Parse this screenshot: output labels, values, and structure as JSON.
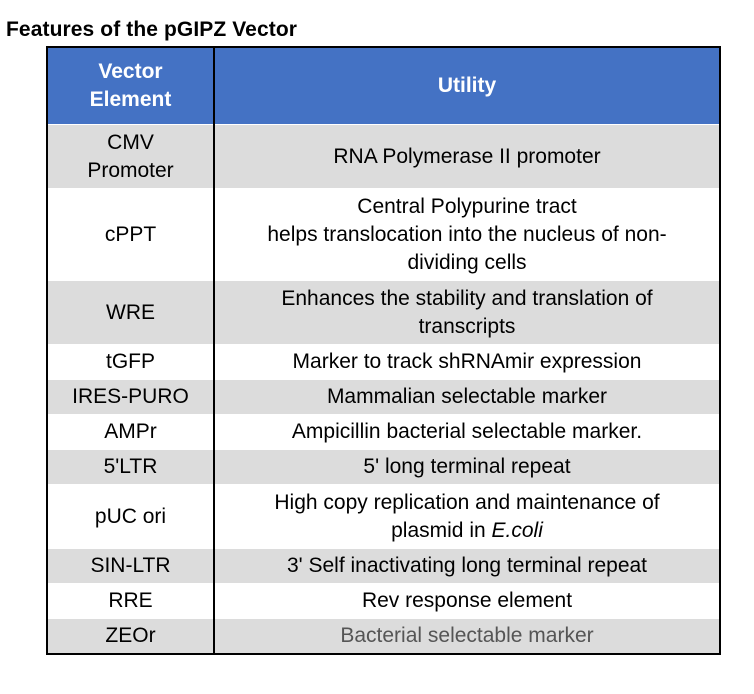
{
  "title": "Features of the pGIPZ Vector",
  "header": {
    "col1": "Vector Element",
    "col1_line1": "Vector",
    "col1_line2": "Element",
    "col2": "Utility"
  },
  "rows": [
    {
      "element_lines": [
        "CMV",
        "Promoter"
      ],
      "utility_lines": [
        "RNA Polymerase II promoter"
      ]
    },
    {
      "element_lines": [
        "cPPT"
      ],
      "utility_lines": [
        "Central Polypurine tract",
        "helps translocation into the nucleus of non-",
        "dividing cells"
      ]
    },
    {
      "element_lines": [
        "WRE"
      ],
      "utility_lines": [
        "Enhances the stability and translation of",
        "transcripts"
      ]
    },
    {
      "element_lines": [
        "tGFP"
      ],
      "utility_lines": [
        "Marker to track shRNAmir expression"
      ]
    },
    {
      "element_lines": [
        "IRES-PURO"
      ],
      "utility_lines": [
        "Mammalian selectable marker"
      ]
    },
    {
      "element_lines": [
        "AMPr"
      ],
      "utility_lines": [
        "Ampicillin bacterial selectable marker."
      ]
    },
    {
      "element_lines": [
        "5'LTR"
      ],
      "utility_lines": [
        "5' long terminal repeat"
      ]
    },
    {
      "element_lines": [
        "pUC ori"
      ],
      "utility_lines": [
        "High copy replication and maintenance of"
      ],
      "utility_line2_prefix": "plasmid in ",
      "utility_line2_italic": "E.coli"
    },
    {
      "element_lines": [
        "SIN-LTR"
      ],
      "utility_lines": [
        "3' Self inactivating long terminal repeat"
      ]
    },
    {
      "element_lines": [
        "RRE"
      ],
      "utility_lines": [
        "Rev response element"
      ]
    },
    {
      "element_lines": [
        "ZEOr"
      ],
      "utility_lines": [
        "Bacterial selectable marker"
      ]
    }
  ],
  "colors": {
    "header_bg": "#4472c4",
    "row_shade": "#dcdcdc",
    "row_white": "#ffffff",
    "last_utility_text": "#555555"
  }
}
